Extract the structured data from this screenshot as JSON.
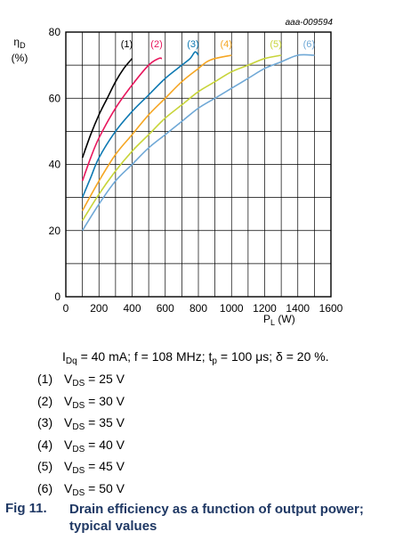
{
  "chart_data": {
    "type": "line",
    "code": "aaa-009594",
    "xlabel": "P",
    "xlabel_sub": "L",
    "xlabel_unit": " (W)",
    "ylabel": "η",
    "ylabel_sub": "D",
    "ylabel_unit": "(%)",
    "xlim": [
      0,
      1600
    ],
    "ylim": [
      0,
      80
    ],
    "xticks": [
      0,
      200,
      400,
      600,
      800,
      1000,
      1200,
      1400,
      1600
    ],
    "yticks": [
      0,
      20,
      40,
      60,
      80
    ],
    "grid": true,
    "series": [
      {
        "label": "(1)",
        "color": "#000000",
        "points": [
          [
            100,
            42
          ],
          [
            150,
            49
          ],
          [
            200,
            55
          ],
          [
            250,
            60
          ],
          [
            300,
            65
          ],
          [
            350,
            69
          ],
          [
            400,
            72
          ]
        ]
      },
      {
        "label": "(2)",
        "color": "#e8175d",
        "points": [
          [
            100,
            35
          ],
          [
            150,
            42
          ],
          [
            200,
            48
          ],
          [
            300,
            57
          ],
          [
            400,
            64
          ],
          [
            500,
            70
          ],
          [
            560,
            72
          ],
          [
            580,
            72
          ]
        ]
      },
      {
        "label": "(3)",
        "color": "#0e79b2",
        "points": [
          [
            100,
            30
          ],
          [
            150,
            36
          ],
          [
            200,
            42
          ],
          [
            300,
            50
          ],
          [
            400,
            56
          ],
          [
            500,
            61
          ],
          [
            600,
            66
          ],
          [
            700,
            70
          ],
          [
            750,
            72
          ],
          [
            780,
            74
          ],
          [
            800,
            73
          ]
        ]
      },
      {
        "label": "(4)",
        "color": "#f5a623",
        "points": [
          [
            100,
            26
          ],
          [
            200,
            35
          ],
          [
            300,
            43
          ],
          [
            400,
            49
          ],
          [
            500,
            55
          ],
          [
            600,
            60
          ],
          [
            700,
            65
          ],
          [
            800,
            69
          ],
          [
            850,
            71
          ],
          [
            900,
            72
          ],
          [
            1000,
            73
          ]
        ]
      },
      {
        "label": "(5)",
        "color": "#c8d43a",
        "points": [
          [
            100,
            23
          ],
          [
            200,
            31
          ],
          [
            300,
            38
          ],
          [
            400,
            44
          ],
          [
            500,
            49
          ],
          [
            600,
            54
          ],
          [
            700,
            58
          ],
          [
            800,
            62
          ],
          [
            900,
            65
          ],
          [
            1000,
            68
          ],
          [
            1100,
            70
          ],
          [
            1200,
            72
          ],
          [
            1300,
            73
          ]
        ]
      },
      {
        "label": "(6)",
        "color": "#6fa8d6",
        "points": [
          [
            100,
            20
          ],
          [
            200,
            28
          ],
          [
            300,
            35
          ],
          [
            400,
            40
          ],
          [
            500,
            45
          ],
          [
            600,
            49
          ],
          [
            700,
            53
          ],
          [
            800,
            57
          ],
          [
            900,
            60
          ],
          [
            1000,
            63
          ],
          [
            1100,
            66
          ],
          [
            1200,
            69
          ],
          [
            1300,
            71
          ],
          [
            1400,
            73
          ],
          [
            1500,
            73
          ]
        ]
      }
    ]
  },
  "caption": {
    "conditions": {
      "i": "I",
      "i_sub": "Dq",
      "rest1": " = 40 mA; f = 108 MHz; t",
      "t_sub": "p",
      "rest2": " = 100 μs; δ = 20 %."
    },
    "legend": [
      {
        "num": "(1)",
        "v": "V",
        "sub": "DS",
        "value": " = 25 V"
      },
      {
        "num": "(2)",
        "v": "V",
        "sub": "DS",
        "value": " = 30 V"
      },
      {
        "num": "(3)",
        "v": "V",
        "sub": "DS",
        "value": " = 35 V"
      },
      {
        "num": "(4)",
        "v": "V",
        "sub": "DS",
        "value": " = 40 V"
      },
      {
        "num": "(5)",
        "v": "V",
        "sub": "DS",
        "value": " = 45 V"
      },
      {
        "num": "(6)",
        "v": "V",
        "sub": "DS",
        "value": " = 50 V"
      }
    ],
    "fig_number": "Fig 11.",
    "fig_title": "Drain efficiency as a function of output power; typical values"
  }
}
